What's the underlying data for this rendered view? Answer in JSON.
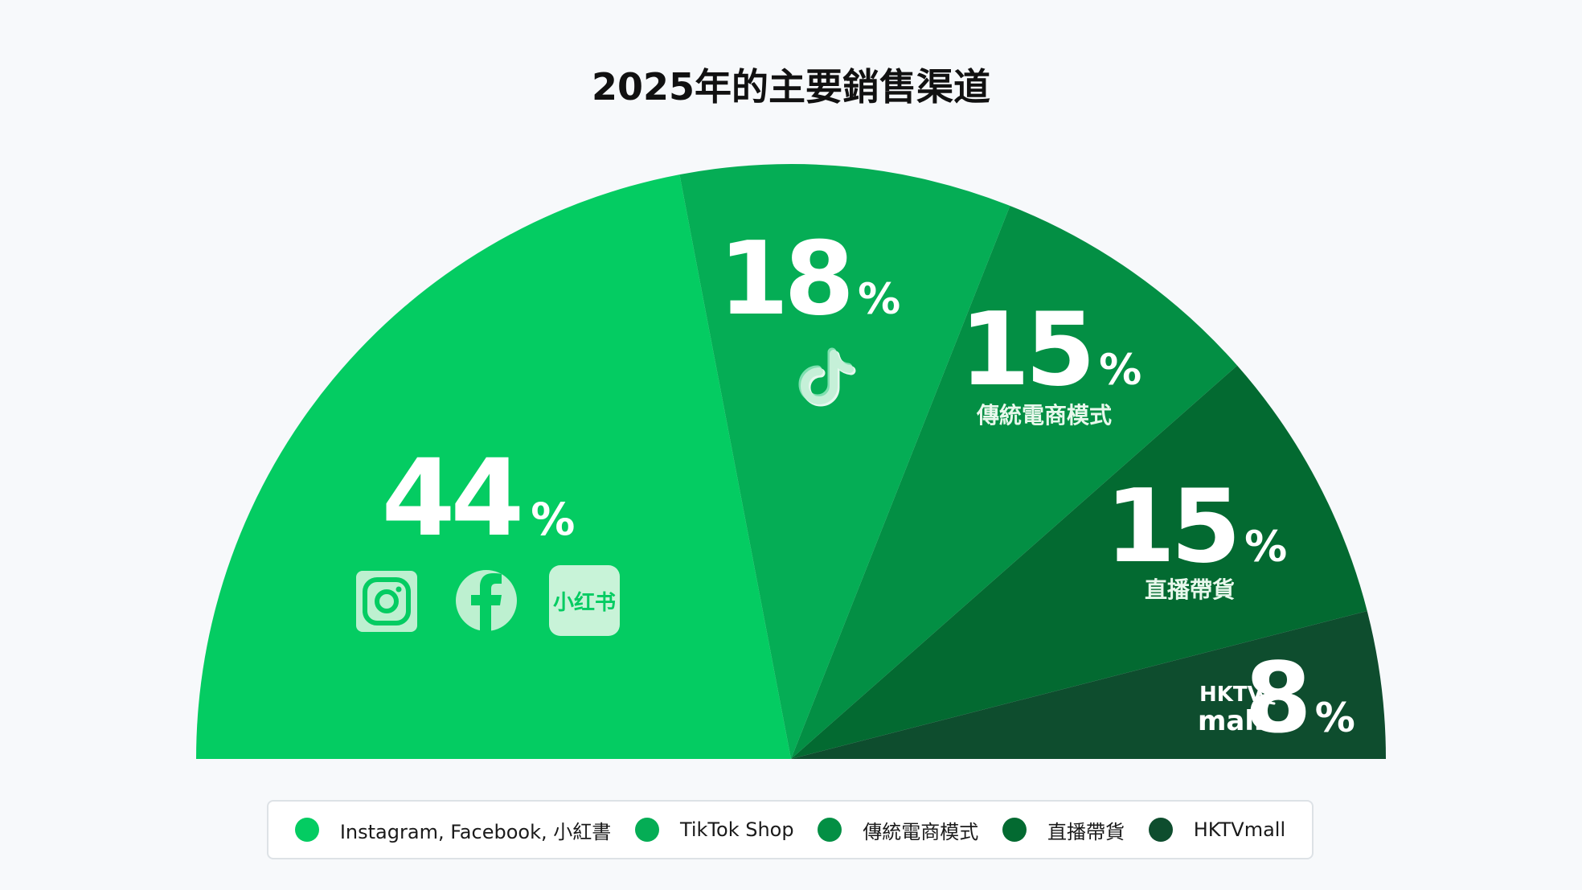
{
  "chart_data": {
    "type": "pie",
    "variant": "semicircle",
    "title": "2025年的主要銷售渠道",
    "unit": "%",
    "slices": [
      {
        "name": "Instagram, Facebook, 小紅書",
        "value": 44,
        "label": "44",
        "sublabel": "",
        "color": "#04cc62",
        "icons": [
          "instagram-icon",
          "facebook-icon",
          "xiaohongshu-icon"
        ],
        "icon_text": "小红书"
      },
      {
        "name": "TikTok Shop",
        "value": 18,
        "label": "18",
        "sublabel": "",
        "color": "#05ad55",
        "icons": [
          "tiktok-icon"
        ]
      },
      {
        "name": "傳統電商模式",
        "value": 15,
        "label": "15",
        "sublabel": "傳統電商模式",
        "color": "#038f44",
        "icons": []
      },
      {
        "name": "直播帶貨",
        "value": 15,
        "label": "15",
        "sublabel": "直播帶貨",
        "color": "#036a31",
        "icons": []
      },
      {
        "name": "HKTVmall",
        "value": 8,
        "label": "8",
        "sublabel": "",
        "color": "#0e4d2e",
        "icons": [
          "hktvmall-logo"
        ],
        "logo_text": [
          "HKTV",
          "mall"
        ]
      }
    ],
    "legend_position": "bottom"
  }
}
